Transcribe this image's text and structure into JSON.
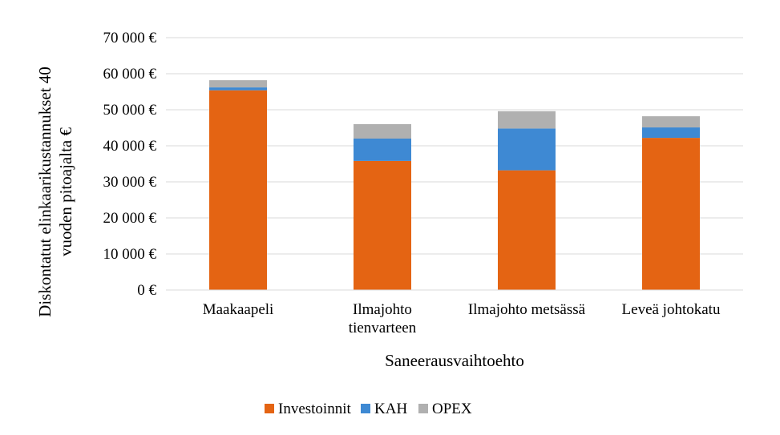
{
  "chart_data": {
    "type": "bar",
    "stacked": true,
    "categories": [
      [
        "Maakaapeli"
      ],
      [
        "Ilmajohto",
        "tienvarteen"
      ],
      [
        "Ilmajohto metsässä"
      ],
      [
        "Leveä johtokatu"
      ]
    ],
    "series": [
      {
        "name": "Investoinnit",
        "color": "#e46413",
        "values": [
          55400,
          35800,
          33200,
          42200
        ]
      },
      {
        "name": "KAH",
        "color": "#3e89d3",
        "values": [
          800,
          6200,
          11600,
          2900
        ]
      },
      {
        "name": "OPEX",
        "color": "#b0b0b0",
        "values": [
          2000,
          4000,
          4800,
          3100
        ]
      }
    ],
    "xlabel": "Saneerausvaihtoehto",
    "ylabel": [
      "Diskontatut elinkaarikustannukset 40",
      "vuoden pitoajalta €"
    ],
    "ylim": [
      0,
      70000
    ],
    "yticks": [
      0,
      10000,
      20000,
      30000,
      40000,
      50000,
      60000,
      70000
    ],
    "ytick_labels": [
      "0 €",
      "10 000 €",
      "20 000 €",
      "30 000 €",
      "40 000 €",
      "50 000 €",
      "60 000 €",
      "70 000 €"
    ],
    "grid": true,
    "legend_position": "bottom"
  }
}
